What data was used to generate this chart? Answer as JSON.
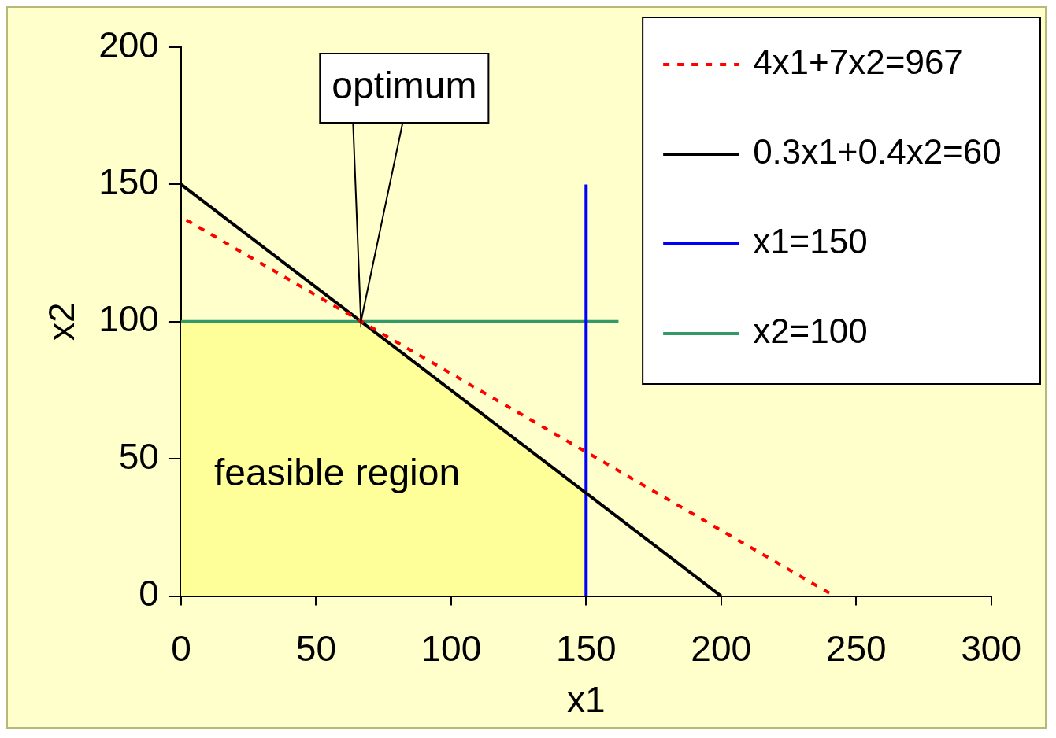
{
  "chart_data": {
    "type": "line",
    "xlabel": "x1",
    "ylabel": "x2",
    "xlim": [
      0,
      300
    ],
    "xticks": [
      0,
      50,
      100,
      150,
      200,
      250,
      300
    ],
    "ylim": [
      0,
      200
    ],
    "yticks": [
      0,
      50,
      100,
      150,
      200
    ],
    "grid": false,
    "legend": "top right",
    "marker": "none",
    "series": [
      {
        "type": "area",
        "color": "#ffff99",
        "x": [
          0,
          66.7,
          150
        ],
        "values": [
          100,
          100,
          37.5
        ]
      },
      {
        "name": "4x1+7x2=967",
        "color": "#ff0000",
        "line_style": "dotted",
        "x": [
          2,
          242
        ],
        "values": [
          137,
          0
        ]
      },
      {
        "name": "0.3x1+0.4x2=60",
        "color": "#000000",
        "x": [
          0,
          200
        ],
        "values": [
          150,
          0
        ]
      },
      {
        "name": "x1=150",
        "color": "#0000ff",
        "x": [
          150,
          150
        ],
        "values": [
          0,
          150
        ]
      },
      {
        "name": "x2=100",
        "color": "#339966",
        "x": [
          0,
          162
        ],
        "values": [
          100,
          100
        ]
      }
    ],
    "annotations": [
      "optimum",
      "feasible region"
    ]
  }
}
